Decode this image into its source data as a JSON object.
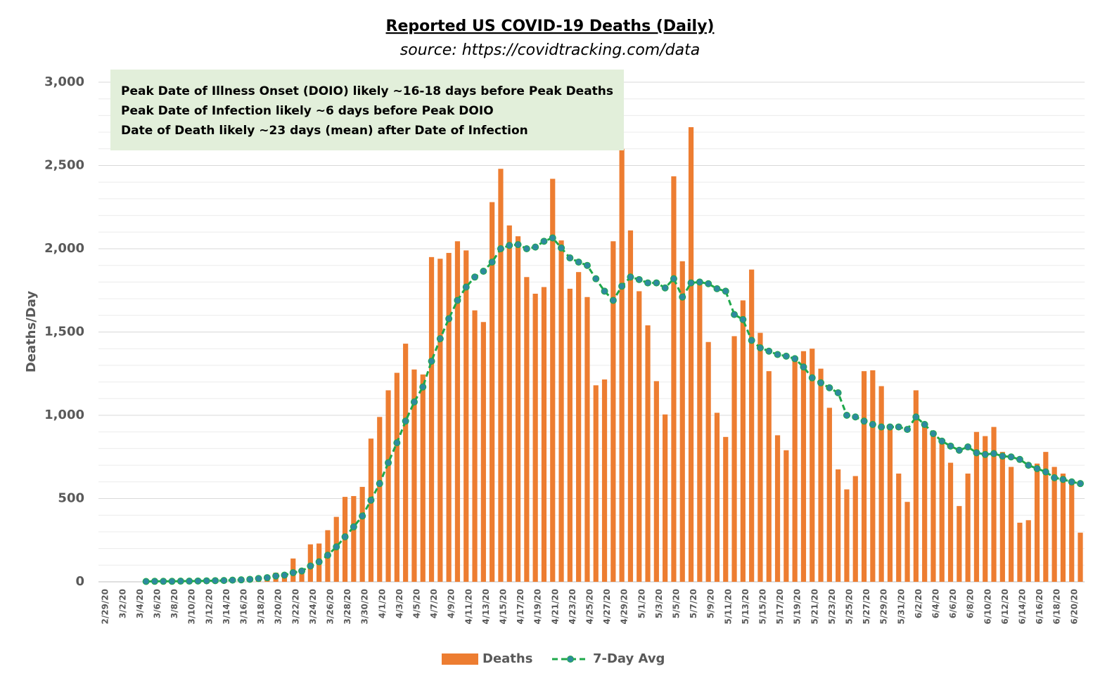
{
  "chart_data": {
    "type": "bar+line",
    "title": "Reported US COVID-19 Deaths (Daily)",
    "subtitle": "source: https://covidtracking.com/data",
    "y_label": "Deaths/Day",
    "annotations": [
      "Peak Date of Illness Onset (DOIO) likely ~16-18 days before Peak Deaths",
      "Peak Date of Infection likely ~6 days before Peak DOIO",
      "Date of Death likely ~23 days (mean) after Date of Infection"
    ],
    "categories": [
      "2/29/20",
      null,
      "3/2/20",
      null,
      "3/4/20",
      null,
      "3/6/20",
      null,
      "3/8/20",
      null,
      "3/10/20",
      null,
      "3/12/20",
      null,
      "3/14/20",
      null,
      "3/16/20",
      null,
      "3/18/20",
      null,
      "3/20/20",
      null,
      "3/22/20",
      null,
      "3/24/20",
      null,
      "3/26/20",
      null,
      "3/28/20",
      null,
      "3/30/20",
      null,
      "4/1/20",
      null,
      "4/3/20",
      null,
      "4/5/20",
      null,
      "4/7/20",
      null,
      "4/9/20",
      null,
      "4/11/20",
      null,
      "4/13/20",
      null,
      "4/15/20",
      null,
      "4/17/20",
      null,
      "4/19/20",
      null,
      "4/21/20",
      null,
      "4/23/20",
      null,
      "4/25/20",
      null,
      "4/27/20",
      null,
      "4/29/20",
      null,
      "5/1/20",
      null,
      "5/3/20",
      null,
      "5/5/20",
      null,
      "5/7/20",
      null,
      "5/9/20",
      null,
      "5/11/20",
      null,
      "5/13/20",
      null,
      "5/15/20",
      null,
      "5/17/20",
      null,
      "5/19/20",
      null,
      "5/21/20",
      null,
      "5/23/20",
      null,
      "5/25/20",
      null,
      "5/27/20",
      null,
      "5/29/20",
      null,
      "5/31/20",
      null,
      "6/2/20",
      null,
      "6/4/20",
      null,
      "6/6/20",
      null,
      "6/8/20",
      null,
      "6/10/20",
      null,
      "6/12/20",
      null,
      "6/14/20",
      null,
      "6/16/20",
      null,
      "6/18/20",
      null,
      "6/20/20",
      null
    ],
    "series": [
      {
        "name": "Deaths",
        "kind": "bar",
        "color": "#ed7d31",
        "values": [
          null,
          null,
          null,
          null,
          null,
          2,
          3,
          2,
          3,
          4,
          4,
          5,
          6,
          7,
          8,
          10,
          15,
          20,
          25,
          30,
          55,
          45,
          140,
          80,
          225,
          230,
          310,
          390,
          510,
          515,
          570,
          860,
          990,
          1150,
          1255,
          1430,
          1275,
          1245,
          1950,
          1940,
          1975,
          2045,
          1990,
          1630,
          1560,
          2280,
          2480,
          2140,
          2075,
          1830,
          1730,
          1770,
          2420,
          2050,
          1760,
          1860,
          1710,
          1180,
          1215,
          2045,
          2600,
          2110,
          1745,
          1540,
          1205,
          1005,
          2435,
          1925,
          2730,
          1800,
          1440,
          1015,
          870,
          1475,
          1690,
          1875,
          1495,
          1265,
          880,
          790,
          1330,
          1385,
          1400,
          1280,
          1045,
          675,
          555,
          635,
          1265,
          1270,
          1175,
          930,
          650,
          480,
          1150,
          940,
          900,
          840,
          715,
          455,
          650,
          900,
          875,
          930,
          780,
          690,
          355,
          370,
          710,
          780,
          690,
          650,
          610,
          295
        ]
      },
      {
        "name": "7-Day Avg",
        "kind": "line",
        "color": "#1ea84a",
        "marker_color": "#2e8a9e",
        "values": [
          null,
          null,
          null,
          null,
          null,
          2,
          3,
          3,
          3,
          4,
          4,
          5,
          6,
          7,
          8,
          10,
          12,
          15,
          20,
          25,
          35,
          40,
          55,
          65,
          95,
          120,
          160,
          210,
          270,
          330,
          395,
          490,
          590,
          715,
          835,
          965,
          1080,
          1170,
          1325,
          1460,
          1580,
          1690,
          1770,
          1830,
          1865,
          1920,
          2000,
          2020,
          2025,
          2000,
          2010,
          2045,
          2065,
          2005,
          1945,
          1920,
          1900,
          1820,
          1745,
          1690,
          1775,
          1830,
          1815,
          1795,
          1795,
          1765,
          1820,
          1710,
          1795,
          1800,
          1790,
          1760,
          1745,
          1605,
          1575,
          1450,
          1405,
          1385,
          1365,
          1355,
          1340,
          1290,
          1225,
          1195,
          1165,
          1135,
          1000,
          990,
          965,
          945,
          930,
          930,
          930,
          915,
          990,
          945,
          890,
          845,
          815,
          790,
          810,
          775,
          765,
          770,
          755,
          750,
          735,
          700,
          680,
          660,
          625,
          615,
          600,
          590
        ]
      }
    ],
    "ylim": [
      0,
      3000
    ],
    "yticks": [
      0,
      500,
      {
        "value": 1000,
        "label": "1,000"
      },
      {
        "value": 1500,
        "label": "1,500"
      },
      {
        "value": 2000,
        "label": "2,000"
      },
      {
        "value": 2500,
        "label": "2,500"
      },
      {
        "value": 3000,
        "label": "3,000"
      }
    ],
    "minor_yticks": [
      100,
      200,
      300,
      400,
      600,
      700,
      800,
      900,
      1100,
      1200,
      1300,
      1400,
      1600,
      1700,
      1800,
      1900,
      2100,
      2200,
      2300,
      2400,
      2600,
      2700,
      2800,
      2900
    ],
    "grid": true,
    "legend": "bottom"
  }
}
